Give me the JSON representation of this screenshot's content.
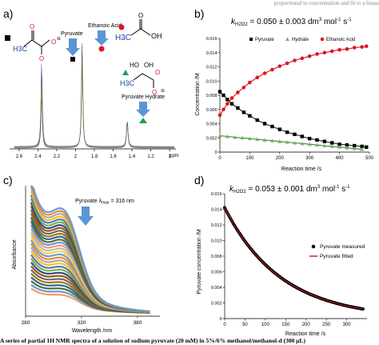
{
  "header_fragment": "proportional to concentration and fit to a linear",
  "caption_fragment": "A series of partial 1H NMR spectra of a solution of sodium pyruvate (20 mM) in 5%/6% methanol/methanol-d (300 μL)",
  "panels": {
    "a": {
      "label": "a)",
      "x_axis_unit": "ppm",
      "x_ticks": [
        "2.6",
        "2.4",
        "2.2",
        "2",
        "1.8",
        "1.6",
        "1.4",
        "1.2",
        "1"
      ],
      "species": {
        "pyruvate": "Pyruvate",
        "ethanoic": "Ethanoic Acid",
        "hydrate": "Pyruvate Hydrate"
      },
      "structures": {
        "pyruvate_methyl": "H3C",
        "ethanoic_methyl": "H3C",
        "ethanoic_oh": "OH",
        "hydrate_methyl": "H3C",
        "hydrate_ho": "HO",
        "hydrate_oh": "OH",
        "oxygen": "O",
        "negative_charge": "⊖"
      },
      "marker_colors": {
        "pyruvate": "#000000",
        "ethanoic": "#e8141c",
        "hydrate": "#1a9e5a",
        "arrow": "#4f8fd0"
      }
    },
    "b": {
      "label": "b)",
      "k_text": "k",
      "k_sub": "H2O2",
      "k_value": " = 0.050 ± 0.003 dm",
      "k_unit_tail": " mol",
      "k_unit_tail2": " s",
      "k_exp": "3",
      "k_exp2": "-1",
      "k_exp3": "-1",
      "xlabel": "Reaction time /s",
      "ylabel": "Concentration /M",
      "legend": [
        "Pyruvate",
        "Hydrate",
        "Ethanoic Acid"
      ]
    },
    "c": {
      "label": "c)",
      "annotation": "Pyruvate λ",
      "annotation_sub": "max",
      "annotation_tail": " = 316 nm",
      "xlabel": "Wavelength /nm",
      "ylabel": "Absorbance",
      "x_ticks": [
        "280",
        "330",
        "380"
      ]
    },
    "d": {
      "label": "d)",
      "k_text": "k",
      "k_sub": "H2O2",
      "k_value": " = 0.053 ± 0.001 dm",
      "k_exp": "3",
      "k_unit_tail": " mol",
      "k_exp2": "-1",
      "k_unit_tail2": " s",
      "k_exp3": "-1",
      "xlabel": "Reaction time /s",
      "ylabel": "Pyruvate concentration /M",
      "legend": [
        "Pyruvate measured",
        "Pyruvate fitted"
      ]
    }
  },
  "chart_data": [
    {
      "type": "scatter",
      "panel": "b",
      "xlim": [
        0,
        500
      ],
      "ylim": [
        0,
        0.016
      ],
      "x_ticks": [
        0,
        100,
        200,
        300,
        400,
        500
      ],
      "y_ticks": [
        0,
        0.002,
        0.004,
        0.006,
        0.008,
        0.01,
        0.012,
        0.014,
        0.016
      ],
      "y_tick_labels": [
        "0",
        "0.002",
        "0.004",
        "0.006",
        "0.008",
        "0.010",
        "0.012",
        "0.014",
        "0.016"
      ],
      "series": [
        {
          "name": "Pyruvate",
          "color": "#000000",
          "marker": "square",
          "x": [
            0,
            12,
            25,
            40,
            60,
            80,
            100,
            125,
            150,
            175,
            200,
            225,
            250,
            275,
            300,
            325,
            350,
            375,
            400,
            425,
            450,
            475,
            490
          ],
          "y": [
            0.0085,
            0.008,
            0.0074,
            0.0068,
            0.0062,
            0.0056,
            0.0051,
            0.0045,
            0.004,
            0.0036,
            0.0032,
            0.0028,
            0.0025,
            0.0022,
            0.0019,
            0.0017,
            0.0015,
            0.0013,
            0.0011,
            0.001,
            0.0009,
            0.0008,
            0.0007
          ]
        },
        {
          "name": "Hydrate",
          "color": "#7cae5b",
          "marker": "triangle",
          "x": [
            0,
            25,
            50,
            75,
            100,
            125,
            150,
            175,
            200,
            225,
            250,
            275,
            300,
            325,
            350,
            375,
            400,
            425,
            450,
            475
          ],
          "y": [
            0.0023,
            0.0022,
            0.0021,
            0.002,
            0.0019,
            0.0018,
            0.0017,
            0.0016,
            0.0015,
            0.0014,
            0.0013,
            0.0012,
            0.0011,
            0.001,
            0.0009,
            0.0008,
            0.0007,
            0.0006,
            0.0005,
            0.0004
          ]
        },
        {
          "name": "Ethanoic Acid",
          "color": "#e0141e",
          "marker": "circle",
          "x": [
            0,
            12,
            25,
            40,
            60,
            80,
            100,
            125,
            150,
            175,
            200,
            225,
            250,
            275,
            300,
            325,
            350,
            375,
            400,
            425,
            450,
            475,
            490
          ],
          "y": [
            0.0052,
            0.006,
            0.0068,
            0.0076,
            0.0084,
            0.0091,
            0.0098,
            0.0105,
            0.0111,
            0.0116,
            0.0121,
            0.0125,
            0.0129,
            0.0132,
            0.0135,
            0.0138,
            0.014,
            0.0142,
            0.0144,
            0.0145,
            0.0147,
            0.0148,
            0.0149
          ]
        }
      ]
    },
    {
      "type": "line",
      "panel": "c",
      "xlim": [
        280,
        400
      ],
      "ylim": [
        0,
        1
      ],
      "note": "overlaid UV-vis absorbance spectra decreasing over time; axis has no numeric y tick labels",
      "series_colors": [
        "#5b9bd5",
        "#ed7d31",
        "#a5a5a5",
        "#ffc000",
        "#4472c4",
        "#70ad47",
        "#264478",
        "#9e480e",
        "#636363",
        "#997300",
        "#255e91",
        "#43682b",
        "#698ed0",
        "#f1975a",
        "#b7b7b7",
        "#ffcd33"
      ]
    },
    {
      "type": "scatter",
      "panel": "d",
      "xlim": [
        0,
        350
      ],
      "ylim": [
        0,
        0.016
      ],
      "x_ticks": [
        0,
        50,
        100,
        150,
        200,
        250,
        300
      ],
      "y_ticks": [
        0,
        0.002,
        0.004,
        0.006,
        0.008,
        0.01,
        0.012,
        0.014,
        0.016
      ],
      "y_tick_labels": [
        "0",
        "0.002",
        "0.004",
        "0.006",
        "0.008",
        "0.010",
        "0.012",
        "0.014",
        "0.016"
      ],
      "series": [
        {
          "name": "Pyruvate measured",
          "color": "#000000",
          "marker": "circle",
          "c0": 0.0142,
          "k": 0.0072,
          "x_start": 0,
          "x_end": 340,
          "n_points": 130
        },
        {
          "name": "Pyruvate fitted",
          "color": "#c0141e",
          "marker": "line",
          "c0": 0.0142,
          "k": 0.0072
        }
      ]
    }
  ]
}
